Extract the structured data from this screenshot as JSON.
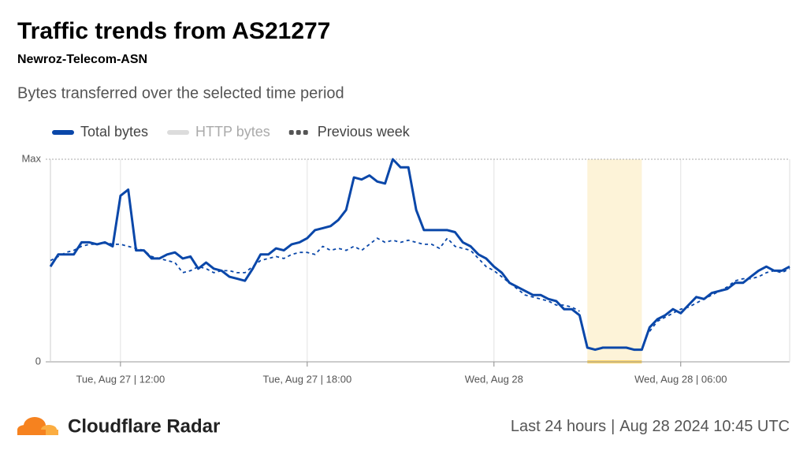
{
  "chart_data": {
    "type": "line",
    "title": "Traffic trends from AS21277",
    "subtitle": "Newroz-Telecom-ASN",
    "description": "Bytes transferred over the selected time period",
    "ylim": [
      0,
      1
    ],
    "yticks": [
      0,
      {
        "value": 1,
        "label": "Max"
      }
    ],
    "xlim": [
      0,
      95
    ],
    "xticks": [
      {
        "value": 9,
        "label": "Tue, Aug 27 | 12:00"
      },
      {
        "value": 33,
        "label": "Tue, Aug 27 | 18:00"
      },
      {
        "value": 57,
        "label": "Wed, Aug 28"
      },
      {
        "value": 81,
        "label": "Wed, Aug 28 | 06:00"
      }
    ],
    "highlight": {
      "from": 69,
      "to": 76,
      "color": "#fdf3d8",
      "edge_color": "#fbd56b"
    },
    "series": [
      {
        "name": "Total bytes",
        "color": "#0a47a9",
        "dash": false,
        "values": [
          0.47,
          0.53,
          0.53,
          0.53,
          0.59,
          0.59,
          0.58,
          0.59,
          0.57,
          0.82,
          0.85,
          0.55,
          0.55,
          0.51,
          0.51,
          0.53,
          0.54,
          0.51,
          0.52,
          0.46,
          0.49,
          0.46,
          0.45,
          0.42,
          0.41,
          0.4,
          0.46,
          0.53,
          0.53,
          0.56,
          0.55,
          0.58,
          0.59,
          0.61,
          0.65,
          0.66,
          0.67,
          0.7,
          0.75,
          0.91,
          0.9,
          0.92,
          0.89,
          0.88,
          1.0,
          0.96,
          0.96,
          0.75,
          0.65,
          0.65,
          0.65,
          0.65,
          0.64,
          0.59,
          0.57,
          0.53,
          0.51,
          0.47,
          0.44,
          0.39,
          0.37,
          0.35,
          0.33,
          0.33,
          0.31,
          0.3,
          0.26,
          0.26,
          0.23,
          0.07,
          0.06,
          0.07,
          0.07,
          0.07,
          0.07,
          0.06,
          0.06,
          0.17,
          0.21,
          0.23,
          0.26,
          0.24,
          0.28,
          0.32,
          0.31,
          0.34,
          0.35,
          0.36,
          0.39,
          0.39,
          0.42,
          0.45,
          0.47,
          0.45,
          0.45,
          0.47
        ]
      },
      {
        "name": "HTTP bytes",
        "color": "#dcdcdc",
        "hidden": true
      },
      {
        "name": "Previous week",
        "color": "#0a47a9",
        "legend_color": "#555555",
        "dash": true,
        "values": [
          0.5,
          0.52,
          0.54,
          0.55,
          0.57,
          0.58,
          0.58,
          0.59,
          0.58,
          0.58,
          0.57,
          0.56,
          0.55,
          0.52,
          0.51,
          0.5,
          0.49,
          0.44,
          0.45,
          0.47,
          0.46,
          0.44,
          0.45,
          0.45,
          0.44,
          0.44,
          0.47,
          0.5,
          0.51,
          0.52,
          0.51,
          0.53,
          0.54,
          0.54,
          0.53,
          0.57,
          0.55,
          0.56,
          0.55,
          0.57,
          0.55,
          0.58,
          0.61,
          0.59,
          0.6,
          0.59,
          0.6,
          0.59,
          0.58,
          0.58,
          0.56,
          0.61,
          0.57,
          0.56,
          0.55,
          0.51,
          0.47,
          0.45,
          0.42,
          0.39,
          0.36,
          0.33,
          0.32,
          0.31,
          0.3,
          0.28,
          0.28,
          0.27,
          0.25,
          null,
          null,
          null,
          null,
          null,
          null,
          null,
          null,
          0.15,
          0.2,
          0.22,
          0.24,
          0.26,
          0.27,
          0.29,
          0.31,
          0.33,
          0.35,
          0.37,
          0.4,
          0.41,
          0.41,
          0.42,
          0.44,
          0.45,
          0.44,
          0.46
        ]
      }
    ],
    "footer": {
      "brand": "Cloudflare Radar",
      "period": "Last 24 hours",
      "timestamp": "Aug 28 2024 10:45 UTC"
    }
  }
}
